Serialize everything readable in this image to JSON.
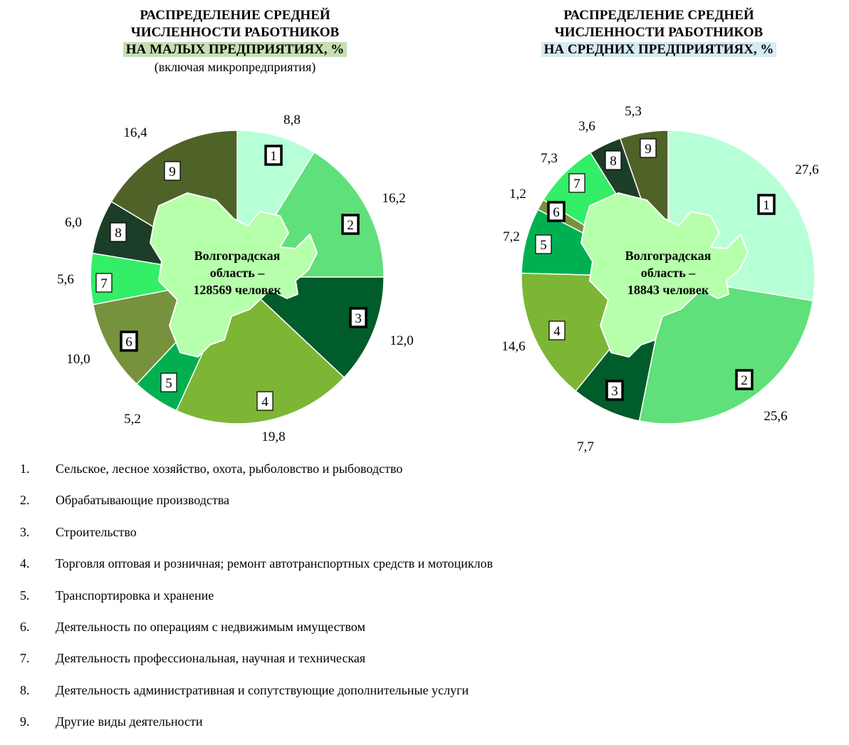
{
  "colors": {
    "1": "#b7ffd6",
    "2": "#5fe07a",
    "3": "#005c2a",
    "4": "#7cb634",
    "5": "#00b050",
    "6": "#76923c",
    "7": "#33ee66",
    "8": "#1c3d28",
    "9": "#4f6228",
    "map": "#b6ffab"
  },
  "chart_data": [
    {
      "type": "pie",
      "title": [
        "РАСПРЕДЕЛЕНИЕ СРЕДНЕЙ",
        "ЧИСЛЕННОСТИ РАБОТНИКОВ",
        "НА МАЛЫХ ПРЕДПРИЯТИЯХ, %"
      ],
      "subtitle": "(включая микропредприятия)",
      "center_label": [
        "Волгоградская",
        "область –",
        "128569 человек"
      ],
      "categories": [
        "1",
        "2",
        "3",
        "4",
        "5",
        "6",
        "7",
        "8",
        "9"
      ],
      "values": [
        8.8,
        16.2,
        12.0,
        19.8,
        5.2,
        10.0,
        5.6,
        6.0,
        16.4
      ],
      "value_labels": [
        "8,8",
        "16,2",
        "12,0",
        "19,8",
        "5,2",
        "10,0",
        "5,6",
        "6,0",
        "16,4"
      ],
      "bold_boxes": [
        "1",
        "2",
        "3",
        "6"
      ]
    },
    {
      "type": "pie",
      "title": [
        "РАСПРЕДЕЛЕНИЕ СРЕДНЕЙ",
        "ЧИСЛЕННОСТИ РАБОТНИКОВ",
        "НА СРЕДНИХ ПРЕДПРИЯТИЯХ, %"
      ],
      "subtitle": "",
      "center_label": [
        "Волгоградская",
        "область –",
        "18843 человек"
      ],
      "categories": [
        "1",
        "2",
        "3",
        "4",
        "5",
        "6",
        "7",
        "8",
        "9"
      ],
      "values": [
        27.6,
        25.6,
        7.7,
        14.6,
        7.2,
        1.2,
        7.3,
        3.6,
        5.3
      ],
      "value_labels": [
        "27,6",
        "25,6",
        "7,7",
        "14,6",
        "7,2",
        "1,2",
        "7,3",
        "3,6",
        "5,3"
      ],
      "bold_boxes": [
        "1",
        "2",
        "3",
        "6"
      ]
    }
  ],
  "legend": [
    {
      "num": "1.",
      "label": "Сельское, лесное хозяйство, охота, рыболовство и рыбоводство"
    },
    {
      "num": "2.",
      "label": "Обрабатывающие производства"
    },
    {
      "num": "3.",
      "label": "Строительство"
    },
    {
      "num": "4.",
      "label": "Торговля оптовая и розничная; ремонт автотранспортных средств и мотоциклов"
    },
    {
      "num": "5.",
      "label": "Транспортировка и хранение"
    },
    {
      "num": "6.",
      "label": "Деятельность по операциям с недвижимым имуществом"
    },
    {
      "num": "7.",
      "label": "Деятельность профессиональная, научная и техническая"
    },
    {
      "num": "8.",
      "label": "Деятельность административная и сопутствующие дополнительные услуги"
    },
    {
      "num": "9.",
      "label": "Другие виды деятельности"
    }
  ]
}
